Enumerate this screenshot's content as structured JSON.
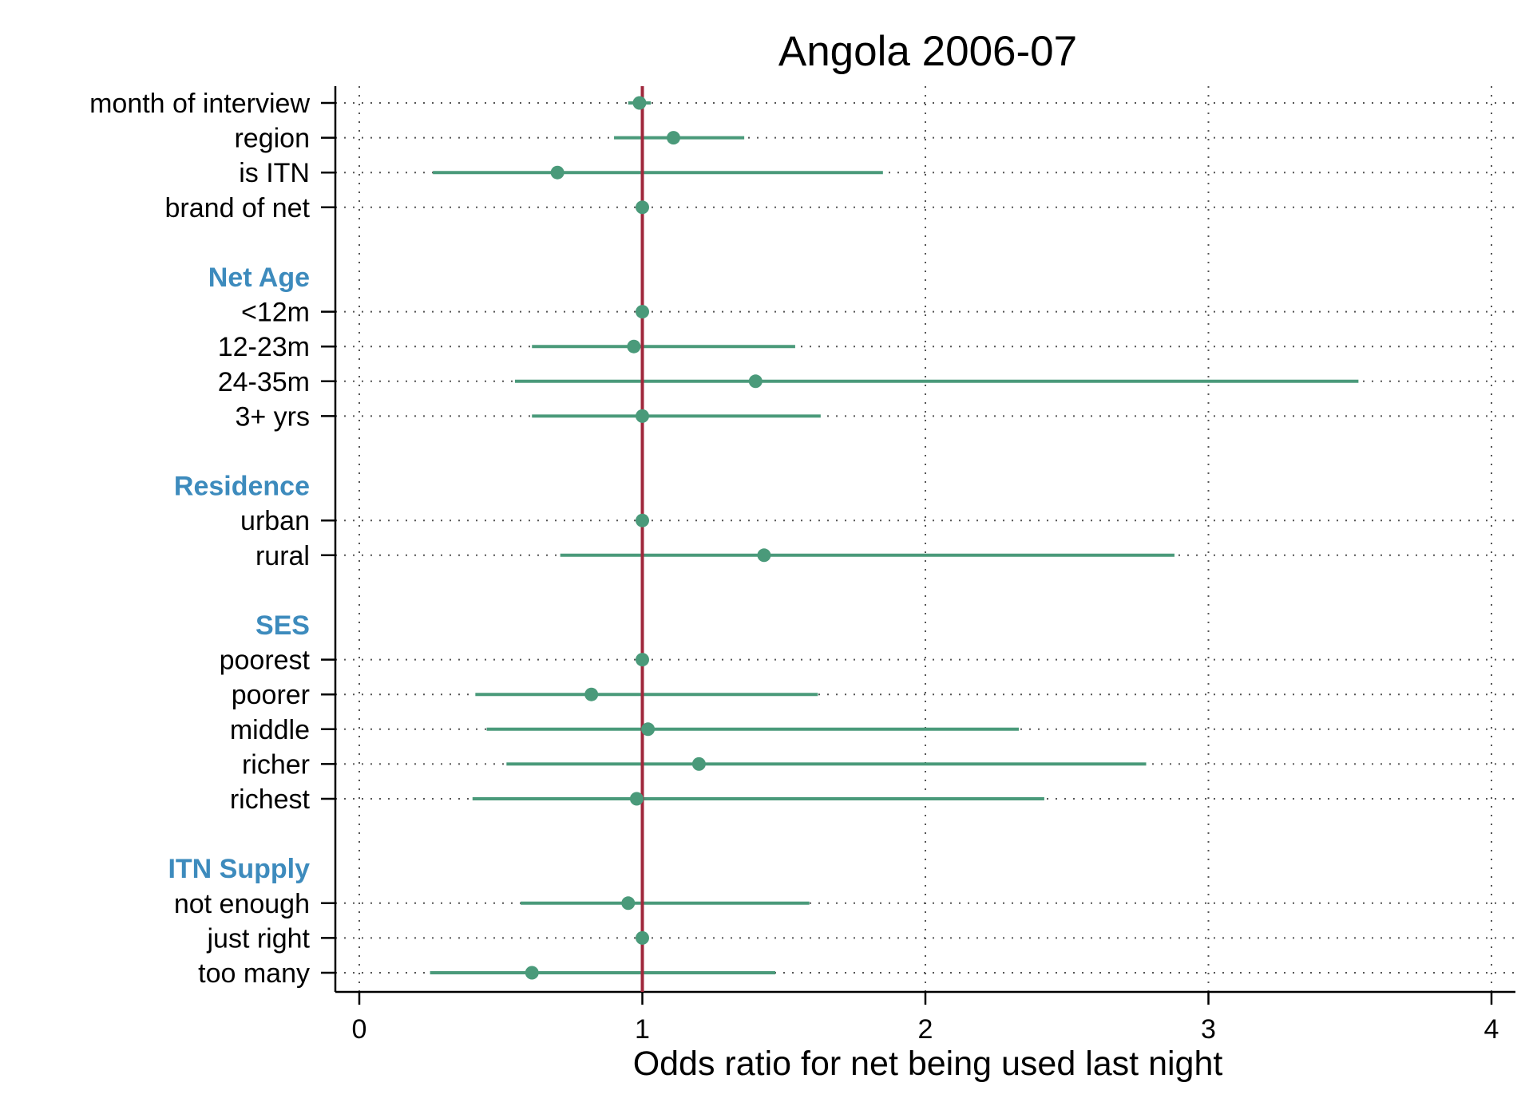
{
  "chart_data": {
    "type": "scatter",
    "title": "Angola 2006-07",
    "xlabel": "Odds ratio for net being used last night",
    "xlim": [
      0,
      4
    ],
    "xticks": [
      "0",
      "1",
      "2",
      "3",
      "4"
    ],
    "reference_line": 1,
    "grid": "dotted",
    "colors": {
      "marker": "#4a9a7a",
      "reference": "#a0283c",
      "group": "#3d8bbd",
      "axis": "#000000",
      "grid": "#555555"
    },
    "rows": [
      {
        "kind": "item",
        "label": "month of interview",
        "est": 0.99,
        "lo": 0.95,
        "hi": 1.03
      },
      {
        "kind": "item",
        "label": "region",
        "est": 1.11,
        "lo": 0.9,
        "hi": 1.36
      },
      {
        "kind": "item",
        "label": "is ITN",
        "est": 0.7,
        "lo": 0.26,
        "hi": 1.85
      },
      {
        "kind": "item",
        "label": "brand of net",
        "est": 1.0,
        "lo": 1.0,
        "hi": 1.0
      },
      {
        "kind": "gap"
      },
      {
        "kind": "group",
        "label": "Net Age"
      },
      {
        "kind": "item",
        "label": "<12m",
        "est": 1.0,
        "lo": 1.0,
        "hi": 1.0
      },
      {
        "kind": "item",
        "label": "12-23m",
        "est": 0.97,
        "lo": 0.61,
        "hi": 1.54
      },
      {
        "kind": "item",
        "label": "24-35m",
        "est": 1.4,
        "lo": 0.55,
        "hi": 3.53
      },
      {
        "kind": "item",
        "label": "3+ yrs",
        "est": 1.0,
        "lo": 0.61,
        "hi": 1.63
      },
      {
        "kind": "gap"
      },
      {
        "kind": "group",
        "label": "Residence"
      },
      {
        "kind": "item",
        "label": "urban",
        "est": 1.0,
        "lo": 1.0,
        "hi": 1.0
      },
      {
        "kind": "item",
        "label": "rural",
        "est": 1.43,
        "lo": 0.71,
        "hi": 2.88
      },
      {
        "kind": "gap"
      },
      {
        "kind": "group",
        "label": "SES"
      },
      {
        "kind": "item",
        "label": "poorest",
        "est": 1.0,
        "lo": 1.0,
        "hi": 1.0
      },
      {
        "kind": "item",
        "label": "poorer",
        "est": 0.82,
        "lo": 0.41,
        "hi": 1.62
      },
      {
        "kind": "item",
        "label": "middle",
        "est": 1.02,
        "lo": 0.45,
        "hi": 2.33
      },
      {
        "kind": "item",
        "label": "richer",
        "est": 1.2,
        "lo": 0.52,
        "hi": 2.78
      },
      {
        "kind": "item",
        "label": "richest",
        "est": 0.98,
        "lo": 0.4,
        "hi": 2.42
      },
      {
        "kind": "gap"
      },
      {
        "kind": "group",
        "label": "ITN Supply"
      },
      {
        "kind": "item",
        "label": "not enough",
        "est": 0.95,
        "lo": 0.57,
        "hi": 1.59
      },
      {
        "kind": "item",
        "label": "just right",
        "est": 1.0,
        "lo": 1.0,
        "hi": 1.0
      },
      {
        "kind": "item",
        "label": "too many",
        "est": 0.61,
        "lo": 0.25,
        "hi": 1.47
      }
    ]
  }
}
